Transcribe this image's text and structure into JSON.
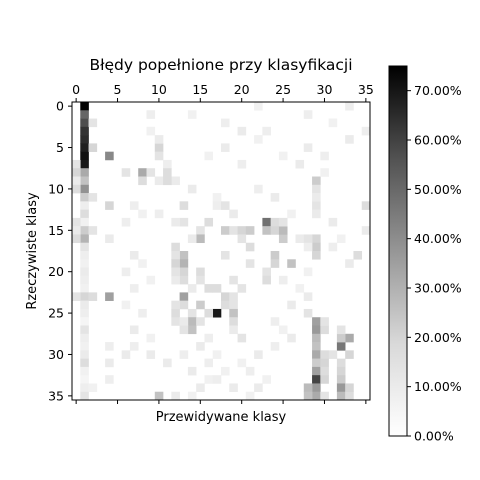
{
  "chart_data": {
    "type": "heatmap",
    "title": "Błędy popełnione przy klasyfikacji",
    "xlabel": "Przewidywane klasy",
    "ylabel": "Rzeczywiste klasy",
    "n_classes": 36,
    "x_ticks": [
      "0",
      "5",
      "10",
      "15",
      "20",
      "25",
      "30",
      "35"
    ],
    "y_ticks": [
      "0",
      "5",
      "10",
      "15",
      "20",
      "25",
      "30",
      "35"
    ],
    "x_tick_values": [
      0,
      5,
      10,
      15,
      20,
      25,
      30,
      35
    ],
    "y_tick_values": [
      0,
      5,
      10,
      15,
      20,
      25,
      30,
      35
    ],
    "colorbar": {
      "range": [
        0,
        75
      ],
      "tick_values": [
        0,
        10,
        20,
        30,
        40,
        50,
        60,
        70
      ],
      "tick_labels": [
        "0.00%",
        "10.00%",
        "20.00%",
        "30.00%",
        "40.00%",
        "50.00%",
        "60.00%",
        "70.00%"
      ],
      "colormap": "Greys"
    },
    "grid": false,
    "cells": [
      [
        0,
        1,
        74
      ],
      [
        1,
        1,
        45
      ],
      [
        2,
        1,
        52
      ],
      [
        3,
        1,
        60
      ],
      [
        4,
        1,
        62
      ],
      [
        5,
        1,
        66
      ],
      [
        6,
        1,
        70
      ],
      [
        7,
        1,
        68
      ],
      [
        8,
        1,
        25
      ],
      [
        9,
        1,
        18
      ],
      [
        10,
        1,
        32
      ],
      [
        11,
        1,
        15
      ],
      [
        12,
        1,
        5
      ],
      [
        13,
        1,
        10
      ],
      [
        14,
        1,
        4
      ],
      [
        15,
        1,
        15
      ],
      [
        16,
        1,
        22
      ],
      [
        17,
        1,
        8
      ],
      [
        18,
        1,
        5
      ],
      [
        19,
        1,
        4
      ],
      [
        20,
        1,
        6
      ],
      [
        21,
        1,
        5
      ],
      [
        22,
        1,
        4
      ],
      [
        23,
        1,
        12
      ],
      [
        24,
        1,
        6
      ],
      [
        25,
        1,
        5
      ],
      [
        26,
        1,
        3
      ],
      [
        27,
        1,
        8
      ],
      [
        28,
        1,
        5
      ],
      [
        29,
        1,
        4
      ],
      [
        30,
        1,
        6
      ],
      [
        31,
        1,
        10
      ],
      [
        32,
        1,
        4
      ],
      [
        33,
        1,
        3
      ],
      [
        34,
        1,
        5
      ],
      [
        35,
        1,
        8
      ],
      [
        5,
        2,
        12
      ],
      [
        6,
        4,
        35
      ],
      [
        2,
        2,
        8
      ],
      [
        7,
        0,
        8
      ],
      [
        8,
        0,
        12
      ],
      [
        9,
        0,
        6
      ],
      [
        14,
        0,
        8
      ],
      [
        15,
        0,
        6
      ],
      [
        10,
        0,
        10
      ],
      [
        23,
        0,
        8
      ],
      [
        15,
        2,
        8
      ],
      [
        16,
        0,
        10
      ],
      [
        23,
        2,
        10
      ],
      [
        23,
        4,
        28
      ],
      [
        11,
        2,
        8
      ],
      [
        5,
        10,
        12
      ],
      [
        4,
        10,
        6
      ],
      [
        6,
        10,
        8
      ],
      [
        8,
        8,
        25
      ],
      [
        9,
        8,
        10
      ],
      [
        8,
        6,
        8
      ],
      [
        12,
        4,
        12
      ],
      [
        16,
        4,
        6
      ],
      [
        9,
        10,
        6
      ],
      [
        7,
        11,
        5
      ],
      [
        13,
        10,
        5
      ],
      [
        8,
        9,
        8
      ],
      [
        8,
        11,
        10
      ],
      [
        9,
        12,
        6
      ],
      [
        9,
        11,
        10
      ],
      [
        12,
        13,
        10
      ],
      [
        14,
        13,
        8
      ],
      [
        10,
        14,
        6
      ],
      [
        11,
        17,
        4
      ],
      [
        12,
        17,
        5
      ],
      [
        12,
        18,
        8
      ],
      [
        13,
        19,
        6
      ],
      [
        14,
        16,
        10
      ],
      [
        15,
        15,
        8
      ],
      [
        15,
        18,
        15
      ],
      [
        15,
        19,
        8
      ],
      [
        16,
        15,
        20
      ],
      [
        16,
        14,
        6
      ],
      [
        17,
        21,
        10
      ],
      [
        16,
        25,
        15
      ],
      [
        16,
        29,
        12
      ],
      [
        16,
        27,
        6
      ],
      [
        18,
        13,
        18
      ],
      [
        19,
        13,
        22
      ],
      [
        19,
        21,
        8
      ],
      [
        20,
        13,
        12
      ],
      [
        21,
        13,
        10
      ],
      [
        19,
        26,
        18
      ],
      [
        20,
        15,
        10
      ],
      [
        21,
        15,
        8
      ],
      [
        22,
        16,
        10
      ],
      [
        21,
        19,
        8
      ],
      [
        18,
        18,
        8
      ],
      [
        18,
        24,
        15
      ],
      [
        19,
        24,
        12
      ],
      [
        14,
        23,
        42
      ],
      [
        15,
        23,
        18
      ],
      [
        14,
        24,
        10
      ],
      [
        15,
        24,
        12
      ],
      [
        15,
        25,
        20
      ],
      [
        14,
        25,
        8
      ],
      [
        15,
        20,
        12
      ],
      [
        15,
        21,
        15
      ],
      [
        16,
        20,
        8
      ],
      [
        20,
        23,
        8
      ],
      [
        21,
        23,
        10
      ],
      [
        22,
        20,
        8
      ],
      [
        22,
        17,
        10
      ],
      [
        23,
        18,
        12
      ],
      [
        23,
        19,
        8
      ],
      [
        24,
        18,
        10
      ],
      [
        24,
        19,
        8
      ],
      [
        23,
        13,
        28
      ],
      [
        24,
        13,
        10
      ],
      [
        22,
        14,
        6
      ],
      [
        24,
        15,
        15
      ],
      [
        25,
        17,
        68
      ],
      [
        25,
        19,
        18
      ],
      [
        25,
        16,
        10
      ],
      [
        25,
        14,
        8
      ],
      [
        26,
        14,
        20
      ],
      [
        26,
        15,
        8
      ],
      [
        27,
        14,
        18
      ],
      [
        26,
        19,
        10
      ],
      [
        27,
        19,
        6
      ],
      [
        28,
        20,
        8
      ],
      [
        25,
        12,
        10
      ],
      [
        26,
        12,
        8
      ],
      [
        21,
        12,
        6
      ],
      [
        24,
        12,
        8
      ],
      [
        17,
        12,
        10
      ],
      [
        18,
        12,
        8
      ],
      [
        19,
        12,
        12
      ],
      [
        14,
        12,
        6
      ],
      [
        20,
        12,
        8
      ],
      [
        26,
        13,
        6
      ],
      [
        27,
        13,
        8
      ],
      [
        26,
        29,
        28
      ],
      [
        27,
        29,
        30
      ],
      [
        28,
        29,
        20
      ],
      [
        29,
        29,
        18
      ],
      [
        30,
        29,
        25
      ],
      [
        31,
        29,
        15
      ],
      [
        32,
        29,
        28
      ],
      [
        33,
        29,
        55
      ],
      [
        34,
        29,
        30
      ],
      [
        35,
        29,
        25
      ],
      [
        34,
        28,
        20
      ],
      [
        35,
        28,
        18
      ],
      [
        27,
        30,
        10
      ],
      [
        28,
        33,
        25
      ],
      [
        29,
        32,
        40
      ],
      [
        28,
        32,
        15
      ],
      [
        30,
        33,
        12
      ],
      [
        31,
        32,
        10
      ],
      [
        32,
        32,
        12
      ],
      [
        33,
        32,
        15
      ],
      [
        34,
        32,
        30
      ],
      [
        35,
        32,
        20
      ],
      [
        35,
        33,
        10
      ],
      [
        34,
        33,
        12
      ],
      [
        26,
        30,
        8
      ],
      [
        27,
        32,
        8
      ],
      [
        30,
        31,
        8
      ],
      [
        30,
        30,
        10
      ],
      [
        31,
        30,
        12
      ],
      [
        32,
        30,
        10
      ],
      [
        33,
        30,
        12
      ],
      [
        35,
        30,
        8
      ],
      [
        9,
        29,
        15
      ],
      [
        10,
        29,
        8
      ],
      [
        17,
        29,
        15
      ],
      [
        18,
        29,
        12
      ],
      [
        16,
        28,
        8
      ],
      [
        17,
        28,
        5
      ],
      [
        18,
        34,
        10
      ],
      [
        15,
        35,
        6
      ],
      [
        12,
        29,
        8
      ],
      [
        11,
        29,
        6
      ],
      [
        13,
        29,
        6
      ],
      [
        30,
        9,
        6
      ],
      [
        31,
        11,
        6
      ],
      [
        30,
        13,
        5
      ],
      [
        32,
        14,
        6
      ],
      [
        33,
        16,
        4
      ],
      [
        34,
        15,
        6
      ],
      [
        35,
        10,
        18
      ],
      [
        30,
        6,
        6
      ],
      [
        29,
        4,
        5
      ],
      [
        31,
        4,
        6
      ],
      [
        33,
        4,
        5
      ],
      [
        34,
        2,
        4
      ],
      [
        35,
        12,
        6
      ],
      [
        35,
        14,
        4
      ],
      [
        3,
        20,
        6
      ],
      [
        4,
        22,
        4
      ],
      [
        6,
        25,
        4
      ],
      [
        5,
        28,
        6
      ],
      [
        10,
        22,
        5
      ],
      [
        11,
        24,
        6
      ],
      [
        13,
        26,
        4
      ],
      [
        8,
        30,
        4
      ],
      [
        7,
        27,
        6
      ],
      [
        6,
        30,
        5
      ],
      [
        4,
        33,
        6
      ],
      [
        3,
        35,
        5
      ],
      [
        12,
        35,
        10
      ],
      [
        14,
        31,
        6
      ],
      [
        16,
        32,
        4
      ],
      [
        17,
        31,
        5
      ],
      [
        19,
        33,
        6
      ],
      [
        20,
        28,
        4
      ],
      [
        21,
        25,
        5
      ],
      [
        22,
        27,
        4
      ],
      [
        23,
        28,
        6
      ],
      [
        24,
        26,
        6
      ],
      [
        25,
        28,
        8
      ],
      [
        26,
        24,
        5
      ],
      [
        27,
        25,
        4
      ],
      [
        28,
        26,
        6
      ],
      [
        29,
        24,
        5
      ],
      [
        30,
        22,
        6
      ],
      [
        31,
        20,
        4
      ],
      [
        32,
        21,
        5
      ],
      [
        33,
        23,
        4
      ],
      [
        34,
        22,
        6
      ],
      [
        28,
        16,
        5
      ],
      [
        29,
        15,
        6
      ],
      [
        30,
        17,
        4
      ],
      [
        31,
        16,
        5
      ],
      [
        32,
        18,
        4
      ],
      [
        33,
        17,
        5
      ],
      [
        34,
        19,
        6
      ],
      [
        35,
        21,
        4
      ],
      [
        12,
        7,
        5
      ],
      [
        13,
        8,
        4
      ],
      [
        14,
        6,
        5
      ],
      [
        18,
        7,
        6
      ],
      [
        19,
        8,
        4
      ],
      [
        20,
        6,
        5
      ],
      [
        21,
        9,
        4
      ],
      [
        22,
        7,
        5
      ],
      [
        24,
        6,
        4
      ],
      [
        25,
        8,
        5
      ],
      [
        27,
        7,
        6
      ],
      [
        28,
        9,
        4
      ],
      [
        29,
        7,
        5
      ],
      [
        1,
        28,
        5
      ],
      [
        2,
        31,
        4
      ],
      [
        0,
        33,
        5
      ],
      [
        1,
        14,
        4
      ],
      [
        2,
        18,
        5
      ],
      [
        0,
        22,
        4
      ],
      [
        3,
        9,
        4
      ],
      [
        1,
        9,
        5
      ],
      [
        3,
        23,
        5
      ],
      [
        5,
        18,
        6
      ],
      [
        6,
        16,
        4
      ],
      [
        7,
        20,
        5
      ]
    ]
  }
}
